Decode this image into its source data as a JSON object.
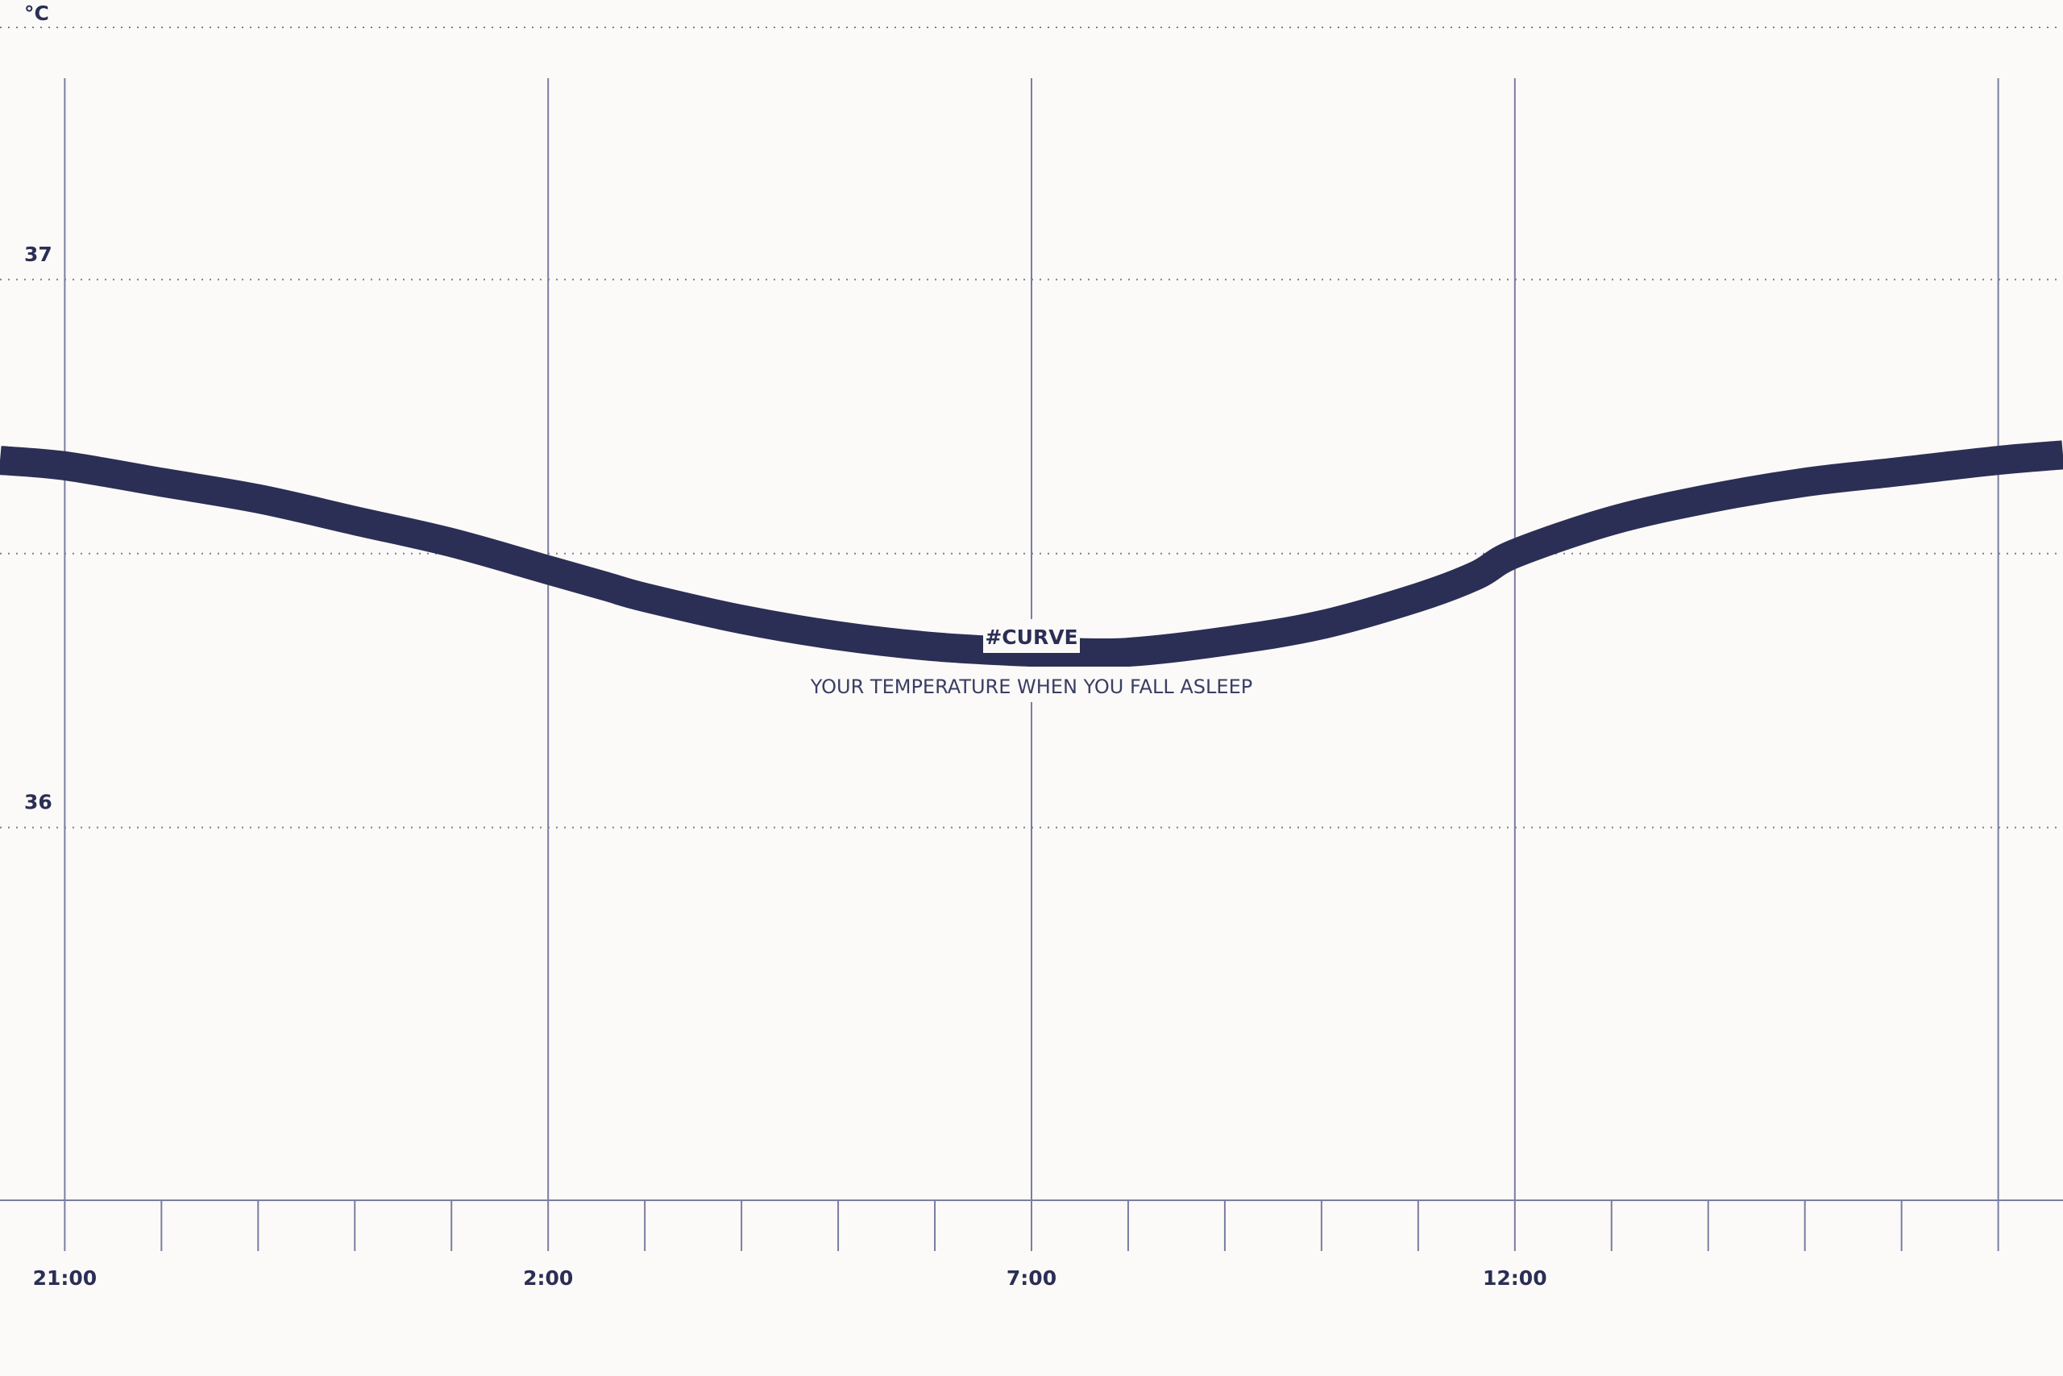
{
  "colors": {
    "background": "#fbfaf8",
    "curve": "#2b2f55",
    "grid": "#7b7da0",
    "text": "#2b2f55"
  },
  "chart_data": {
    "type": "line",
    "title": "",
    "xlabel": "",
    "ylabel": "°C",
    "x_tick_labels": [
      "21:00",
      "2:00",
      "7:00",
      "12:00"
    ],
    "x_tick_values": [
      21,
      26,
      31,
      36
    ],
    "x_range": [
      20.33,
      41.67
    ],
    "x_minor_step": 1,
    "x_major_step": 5,
    "y_tick_labels": [
      "36",
      "37"
    ],
    "y_tick_values": [
      36,
      37
    ],
    "y_range": [
      35.32,
      37.51
    ],
    "y_gridlines": [
      36,
      36.5,
      37,
      37.46
    ],
    "grid": true,
    "series": [
      {
        "name": "",
        "x": [
          20.33,
          21,
          22,
          23,
          24,
          25,
          26,
          26.6,
          27,
          28,
          29,
          30,
          31,
          31.3,
          32,
          33,
          34,
          35,
          35.6,
          36,
          37,
          38,
          39,
          40,
          41,
          41.67
        ],
        "y": [
          36.67,
          36.66,
          36.63,
          36.6,
          36.56,
          36.52,
          36.47,
          36.44,
          36.42,
          36.38,
          36.35,
          36.33,
          36.32,
          36.32,
          36.32,
          36.34,
          36.37,
          36.42,
          36.46,
          36.5,
          36.56,
          36.6,
          36.63,
          36.65,
          36.67,
          36.68
        ]
      }
    ],
    "annotations": [
      {
        "title": "#CURVE",
        "text": "YOUR TEMPERATURE WHEN YOU FALL ASLEEP"
      }
    ]
  }
}
